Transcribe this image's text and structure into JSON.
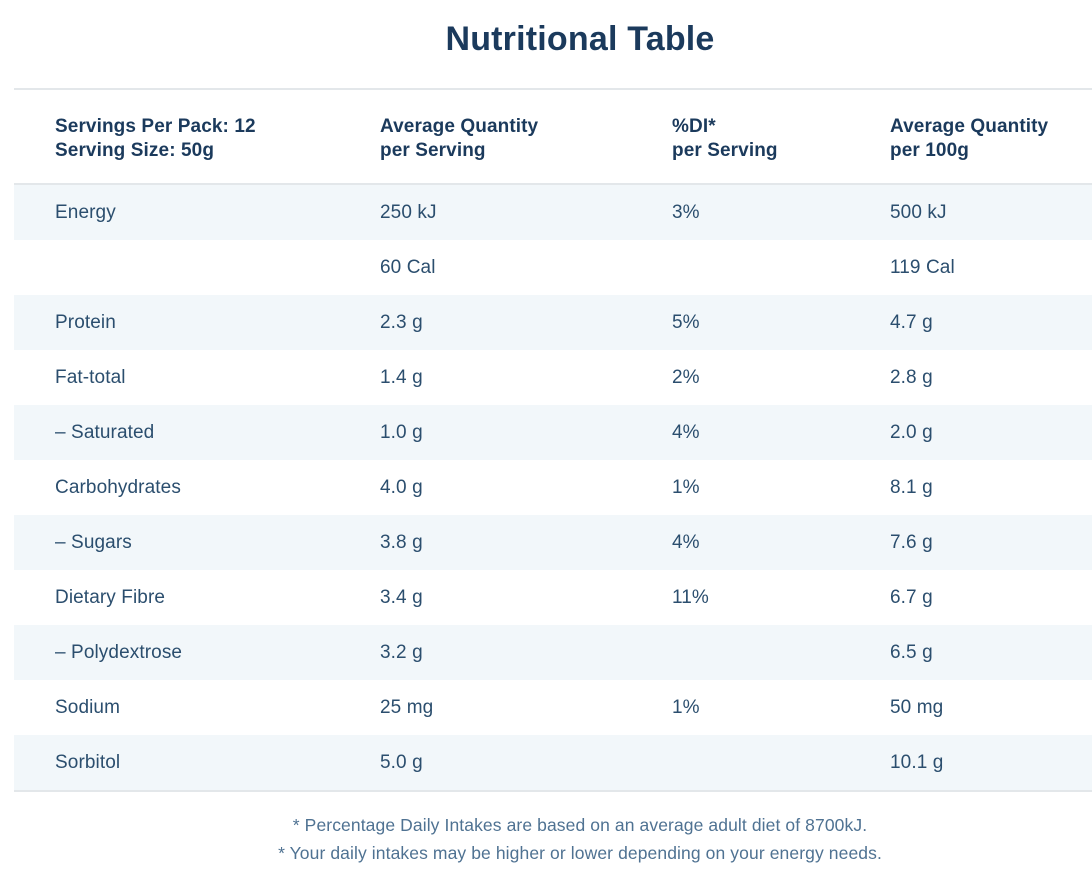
{
  "page": {
    "title": "Nutritional Table"
  },
  "table": {
    "header": {
      "col1_line1": "Servings Per Pack: 12",
      "col1_line2": "Serving Size: 50g",
      "col2_line1": "Average Quantity",
      "col2_line2": "per Serving",
      "col3_line1": "%DI*",
      "col3_line2": "per Serving",
      "col4_line1": "Average Quantity",
      "col4_line2": "per 100g"
    },
    "rows": [
      {
        "nutrient": "Energy",
        "per_serving": "250 kJ",
        "di_per_serving": "3%",
        "per_100g": "500 kJ",
        "striped": true
      },
      {
        "nutrient": "",
        "per_serving": "60 Cal",
        "di_per_serving": "",
        "per_100g": "119 Cal",
        "striped": false
      },
      {
        "nutrient": "Protein",
        "per_serving": "2.3 g",
        "di_per_serving": "5%",
        "per_100g": "4.7 g",
        "striped": true
      },
      {
        "nutrient": "Fat-total",
        "per_serving": "1.4 g",
        "di_per_serving": "2%",
        "per_100g": "2.8 g",
        "striped": false
      },
      {
        "nutrient": "– Saturated",
        "per_serving": "1.0 g",
        "di_per_serving": "4%",
        "per_100g": "2.0 g",
        "striped": true
      },
      {
        "nutrient": "Carbohydrates",
        "per_serving": "4.0 g",
        "di_per_serving": "1%",
        "per_100g": "8.1 g",
        "striped": false
      },
      {
        "nutrient": "– Sugars",
        "per_serving": "3.8 g",
        "di_per_serving": "4%",
        "per_100g": "7.6 g",
        "striped": true
      },
      {
        "nutrient": "Dietary Fibre",
        "per_serving": "3.4 g",
        "di_per_serving": "11%",
        "per_100g": "6.7 g",
        "striped": false
      },
      {
        "nutrient": "– Polydextrose",
        "per_serving": "3.2 g",
        "di_per_serving": "",
        "per_100g": "6.5 g",
        "striped": true
      },
      {
        "nutrient": "Sodium",
        "per_serving": "25 mg",
        "di_per_serving": "1%",
        "per_100g": "50 mg",
        "striped": false
      },
      {
        "nutrient": "Sorbitol",
        "per_serving": "5.0 g",
        "di_per_serving": "",
        "per_100g": "10.1 g",
        "striped": true
      }
    ]
  },
  "footnotes": [
    "* Percentage Daily Intakes are based on an average adult diet of 8700kJ.",
    "* Your daily intakes may be higher or lower depending on your energy needs."
  ],
  "colors": {
    "heading_text": "#1b3a5c",
    "body_text": "#2b4e6e",
    "footnote_text": "#4f7292",
    "stripe_background": "#f2f7fa",
    "divider_line": "#e3e7ea",
    "page_background": "#ffffff"
  }
}
